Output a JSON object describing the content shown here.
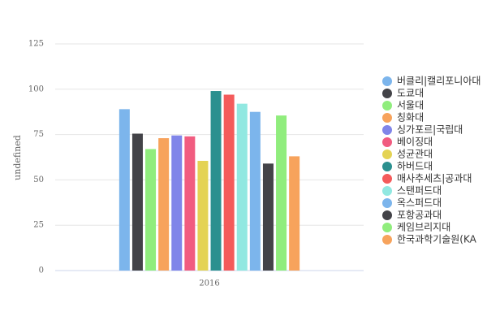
{
  "chart_data": {
    "type": "bar",
    "y_label": "undefined",
    "categories": [
      "2016"
    ],
    "ylim": [
      0,
      125
    ],
    "yticks": [
      0,
      25,
      50,
      75,
      100,
      125
    ],
    "grid": true,
    "series": [
      {
        "name": "버클리|캘리포니아대",
        "color": "#7cb5ec",
        "values": [
          89
        ]
      },
      {
        "name": "도쿄대",
        "color": "#434348",
        "values": [
          75.5
        ]
      },
      {
        "name": "서울대",
        "color": "#90ed7d",
        "values": [
          67
        ]
      },
      {
        "name": "칭화대",
        "color": "#f7a35c",
        "values": [
          73
        ]
      },
      {
        "name": "싱가포르|국립대",
        "color": "#8085e9",
        "values": [
          74.5
        ]
      },
      {
        "name": "베이징대",
        "color": "#f15c80",
        "values": [
          74
        ]
      },
      {
        "name": "성균관대",
        "color": "#e4d354",
        "values": [
          60.5
        ]
      },
      {
        "name": "하버드대",
        "color": "#2b908f",
        "values": [
          99
        ]
      },
      {
        "name": "매사추세츠|공과대",
        "color": "#f45b5b",
        "values": [
          97
        ]
      },
      {
        "name": "스탠퍼드대",
        "color": "#91e8e1",
        "values": [
          92
        ]
      },
      {
        "name": "옥스퍼드대",
        "color": "#7cb5ec",
        "values": [
          87.5
        ]
      },
      {
        "name": "포항공과대",
        "color": "#434348",
        "values": [
          59
        ]
      },
      {
        "name": "케임브리지대",
        "color": "#90ed7d",
        "values": [
          85.5
        ]
      },
      {
        "name": "한국과학기술원(KA",
        "color": "#f7a35c",
        "values": [
          63
        ]
      }
    ]
  }
}
